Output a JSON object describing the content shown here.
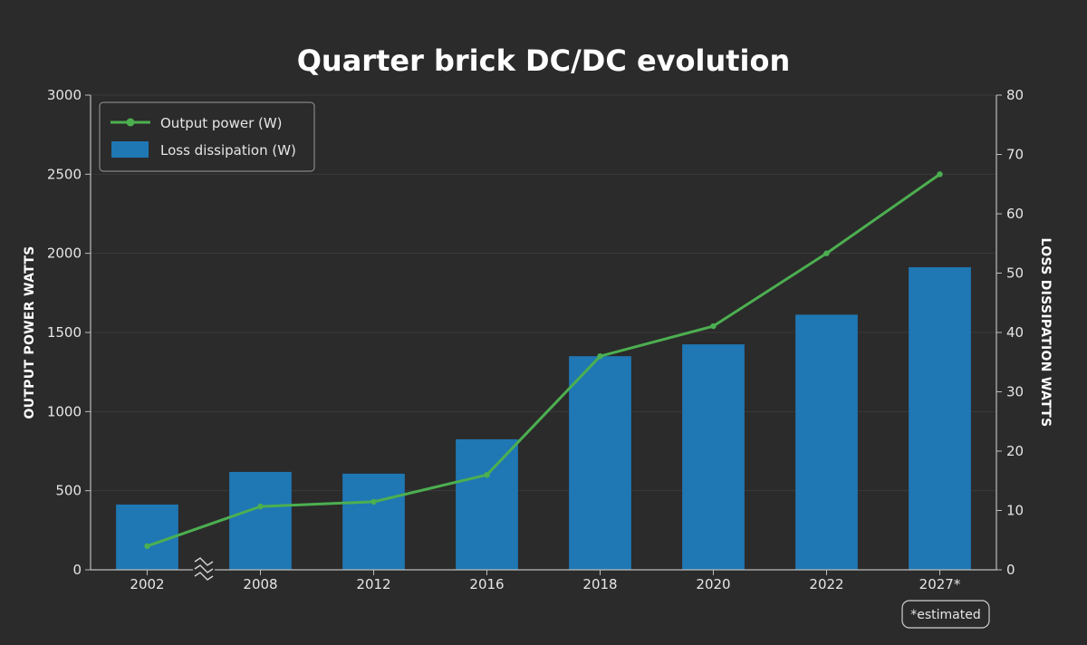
{
  "chart_data": {
    "type": "bar",
    "title": "Quarter brick DC/DC evolution",
    "categories": [
      "2002",
      "2008",
      "2012",
      "2016",
      "2018",
      "2020",
      "2022",
      "2027*"
    ],
    "y_left": {
      "label": "OUTPUT POWER WATTS",
      "range": [
        0,
        3000
      ],
      "ticks": [
        0,
        500,
        1000,
        1500,
        2000,
        2500,
        3000
      ]
    },
    "y_right": {
      "label": "LOSS DISSIPATION WATTS",
      "range": [
        0,
        80
      ],
      "ticks": [
        0,
        10,
        20,
        30,
        40,
        50,
        60,
        70,
        80
      ]
    },
    "series": [
      {
        "name": "Output power (W)",
        "type": "line",
        "axis": "left",
        "color": "#4caf50",
        "values": [
          150,
          400,
          430,
          600,
          1350,
          1540,
          2000,
          2500
        ]
      },
      {
        "name": "Loss dissipation (W)",
        "type": "bar",
        "axis": "right",
        "color": "#1f77b4",
        "values": [
          11,
          16.5,
          16.2,
          22,
          36,
          38,
          43,
          51
        ]
      }
    ],
    "grid": "horizontal",
    "legend_position": "top-left",
    "axis_break_between": [
      "2002",
      "2008"
    ],
    "note": "*estimated"
  }
}
